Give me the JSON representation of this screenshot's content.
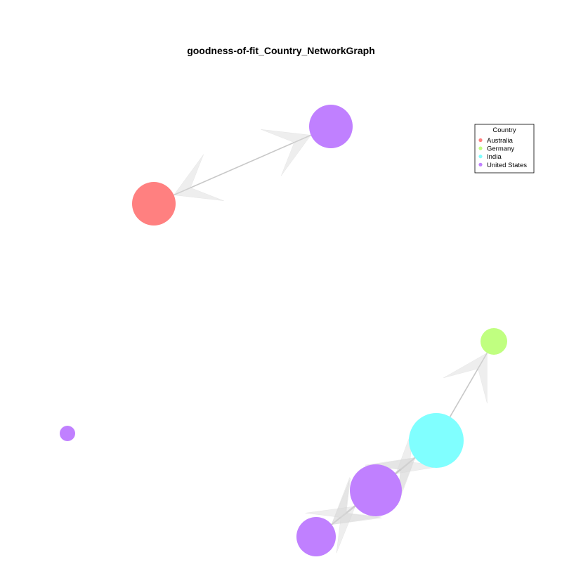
{
  "title": "goodness-of-fit_Country_NetworkGraph",
  "legend": {
    "title": "Country",
    "items": [
      {
        "label": "Australia",
        "color": "#ff8080"
      },
      {
        "label": "Germany",
        "color": "#c0ff80"
      },
      {
        "label": "India",
        "color": "#80ffff"
      },
      {
        "label": "United States",
        "color": "#c080ff"
      }
    ]
  },
  "nodes": [
    {
      "id": "n1",
      "country": "United States"
    },
    {
      "id": "n2",
      "country": "Australia"
    },
    {
      "id": "n3",
      "country": "Germany"
    },
    {
      "id": "n4",
      "country": "India"
    },
    {
      "id": "n5",
      "country": "United States"
    },
    {
      "id": "n6",
      "country": "United States"
    },
    {
      "id": "n7",
      "country": "United States"
    }
  ],
  "edges": [
    {
      "from": "n1",
      "to": "n2",
      "bidirectional": true
    },
    {
      "from": "n4",
      "to": "n3",
      "bidirectional": false
    },
    {
      "from": "n4",
      "to": "n5",
      "bidirectional": false
    },
    {
      "from": "n4",
      "to": "n6",
      "bidirectional": true
    },
    {
      "from": "n5",
      "to": "n6",
      "bidirectional": true
    },
    {
      "from": "n5",
      "to": "n4",
      "bidirectional": false
    }
  ]
}
